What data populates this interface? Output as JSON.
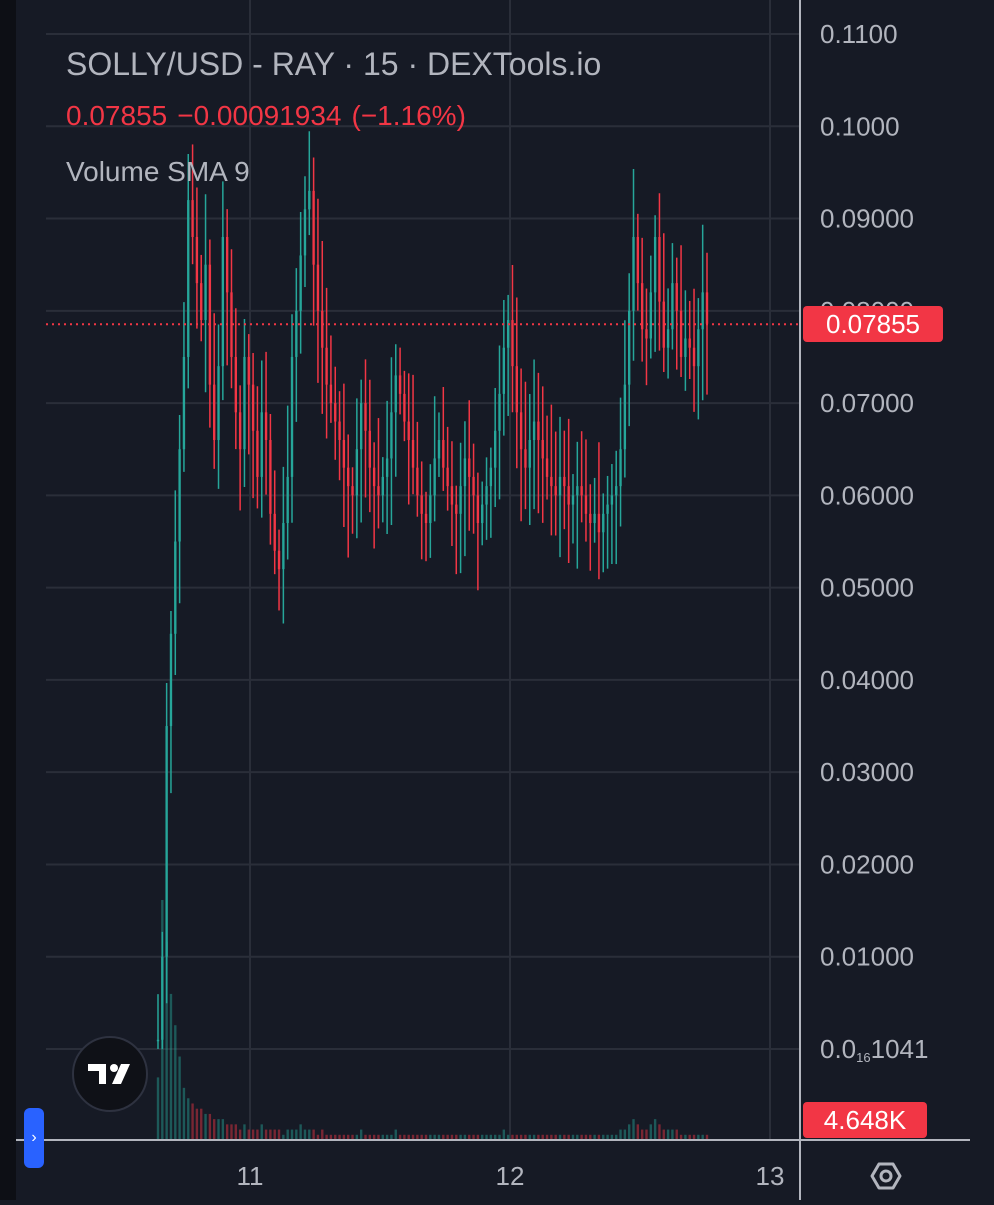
{
  "legend": {
    "title": "SOLLY/USD - RAY · 15 · DEXTools.io",
    "price": "0.07855",
    "change": "−0.00091934",
    "change_pct": "(−1.16%)",
    "indicator": "Volume SMA 9"
  },
  "last_price_label": "0.07855",
  "volume_label": "4.648K",
  "icons": {
    "logo": "tradingview-logo-icon",
    "collapse": "chevron-right-icon",
    "settings": "hexagon-settings-icon"
  },
  "colors": {
    "background": "#161a25",
    "grid": "#2a2e39",
    "up": "#26a69a",
    "down": "#f23645",
    "text": "#b2b5be",
    "axis_line": "#b2b5be",
    "accent": "#2962ff"
  },
  "chart_data": {
    "type": "candlestick",
    "title": "SOLLY/USD - RAY · 15 · DEXTools.io",
    "x_ticks": [
      "11",
      "12",
      "13"
    ],
    "y_ticks": [
      {
        "value": 0.11,
        "label": "0.1100"
      },
      {
        "value": 0.1,
        "label": "0.1000"
      },
      {
        "value": 0.09,
        "label": "0.09000"
      },
      {
        "value": 0.08,
        "label": "0.08000"
      },
      {
        "value": 0.07,
        "label": "0.07000"
      },
      {
        "value": 0.06,
        "label": "0.06000"
      },
      {
        "value": 0.05,
        "label": "0.05000"
      },
      {
        "value": 0.04,
        "label": "0.04000"
      },
      {
        "value": 0.03,
        "label": "0.03000"
      },
      {
        "value": 0.02,
        "label": "0.02000"
      },
      {
        "value": 0.01,
        "label": "0.01000"
      },
      {
        "value": 0.0,
        "label_prefix": "0.0",
        "label_sub": "16",
        "label_suffix": "1041"
      }
    ],
    "ylim": [
      0.0,
      0.11
    ],
    "last_price": 0.07855,
    "series": [
      {
        "name": "SOLLY/USD",
        "close": [
          0.001,
          0.01,
          0.035,
          0.045,
          0.055,
          0.065,
          0.075,
          0.092,
          0.088,
          0.083,
          0.079,
          0.085,
          0.072,
          0.066,
          0.074,
          0.088,
          0.082,
          0.075,
          0.069,
          0.065,
          0.075,
          0.072,
          0.067,
          0.062,
          0.069,
          0.066,
          0.058,
          0.054,
          0.052,
          0.057,
          0.062,
          0.075,
          0.08,
          0.086,
          0.091,
          0.093,
          0.085,
          0.08,
          0.076,
          0.072,
          0.07,
          0.068,
          0.066,
          0.063,
          0.061,
          0.06,
          0.065,
          0.07,
          0.067,
          0.063,
          0.061,
          0.06,
          0.062,
          0.064,
          0.069,
          0.073,
          0.071,
          0.068,
          0.066,
          0.063,
          0.06,
          0.058,
          0.057,
          0.06,
          0.064,
          0.066,
          0.063,
          0.061,
          0.059,
          0.058,
          0.061,
          0.064,
          0.062,
          0.06,
          0.057,
          0.059,
          0.061,
          0.063,
          0.067,
          0.071,
          0.076,
          0.079,
          0.074,
          0.069,
          0.065,
          0.063,
          0.066,
          0.068,
          0.066,
          0.064,
          0.062,
          0.061,
          0.06,
          0.062,
          0.061,
          0.059,
          0.06,
          0.061,
          0.06,
          0.058,
          0.057,
          0.058,
          0.056,
          0.058,
          0.059,
          0.06,
          0.061,
          0.065,
          0.072,
          0.08,
          0.088,
          0.083,
          0.078,
          0.077,
          0.082,
          0.088,
          0.081,
          0.076,
          0.078,
          0.083,
          0.08,
          0.075,
          0.077,
          0.076,
          0.074,
          0.078,
          0.082,
          0.0786
        ]
      },
      {
        "name": "Volume SMA 9",
        "values": [
          12,
          46,
          38,
          28,
          22,
          16,
          10,
          8,
          7,
          6,
          6,
          5,
          5,
          4,
          4,
          4,
          3,
          3,
          3,
          2,
          3,
          2,
          2,
          2,
          3,
          2,
          2,
          2,
          2,
          1,
          2,
          2,
          2,
          3,
          2,
          2,
          2,
          1,
          2,
          1,
          1,
          1,
          1,
          1,
          1,
          1,
          1,
          2,
          1,
          1,
          1,
          1,
          1,
          1,
          1,
          2,
          1,
          1,
          1,
          1,
          1,
          1,
          1,
          1,
          1,
          1,
          1,
          1,
          1,
          1,
          1,
          1,
          1,
          1,
          1,
          1,
          1,
          1,
          1,
          1,
          2,
          1,
          1,
          1,
          1,
          1,
          1,
          1,
          1,
          1,
          1,
          1,
          1,
          1,
          1,
          1,
          1,
          1,
          1,
          1,
          1,
          1,
          1,
          1,
          1,
          1,
          1,
          2,
          2,
          3,
          4,
          3,
          2,
          2,
          3,
          4,
          3,
          2,
          2,
          2,
          2,
          1,
          1,
          1,
          1,
          1,
          1,
          1
        ]
      }
    ],
    "grid": true,
    "legend": "top-left"
  }
}
